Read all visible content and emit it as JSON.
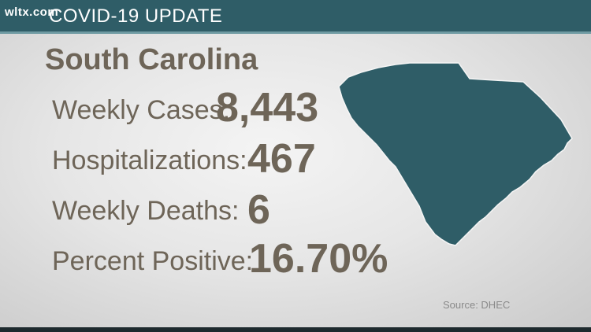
{
  "header": {
    "logo": "wltx.com",
    "title": "COVID-19 UPDATE"
  },
  "content": {
    "state": "South Carolina",
    "stats": [
      {
        "label": "Weekly Cases:",
        "value": "8,443"
      },
      {
        "label": "Hospitalizations:",
        "value": "467"
      },
      {
        "label": "Weekly Deaths:",
        "value": "6"
      },
      {
        "label": "Percent Positive:",
        "value": "16.70%"
      }
    ],
    "source": "Source: DHEC"
  },
  "map": {
    "icon": "south-carolina-map-icon",
    "fill": "#2f5d67"
  },
  "colors": {
    "header_bar": "#2f5d67",
    "text": "#6e6558",
    "background": "#e6e6e6"
  }
}
